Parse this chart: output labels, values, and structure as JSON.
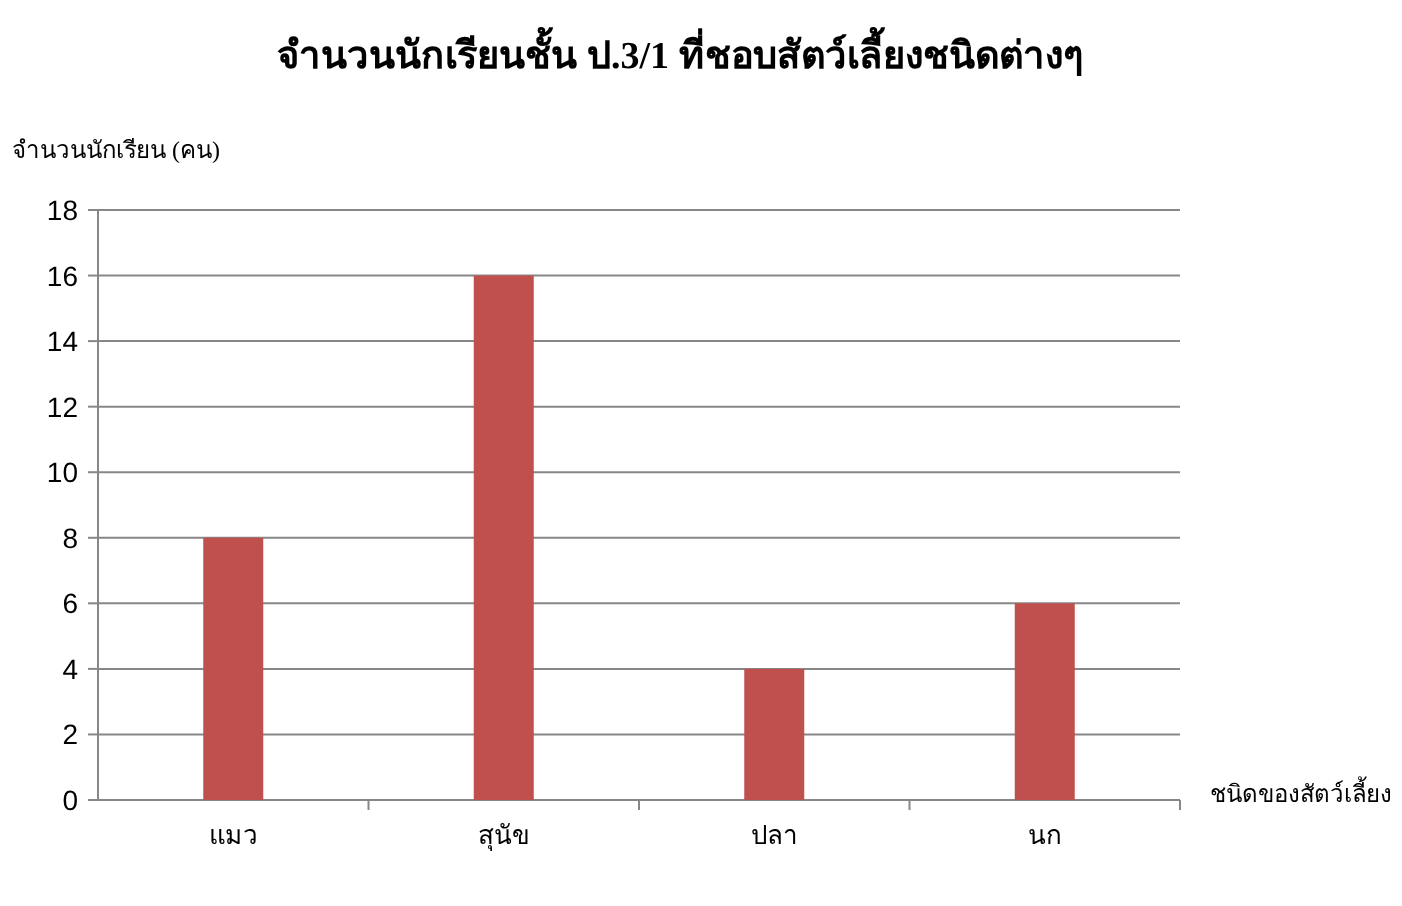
{
  "chart_data": {
    "type": "bar",
    "title": "จำนวนนักเรียนชั้น ป.3/1  ที่ชอบสัตว์เลี้ยงชนิดต่างๆ",
    "ylabel": "จำนวนนักเรียน (คน)",
    "xlabel": "ชนิดของสัตว์เลี้ยง",
    "categories": [
      "แมว",
      "สุนัข",
      "ปลา",
      "นก"
    ],
    "values": [
      8,
      16,
      4,
      6
    ],
    "color": "#c0504d",
    "ylim": [
      0,
      18
    ],
    "yticks": [
      0,
      2,
      4,
      6,
      8,
      10,
      12,
      14,
      16,
      18
    ],
    "grid": "y"
  }
}
